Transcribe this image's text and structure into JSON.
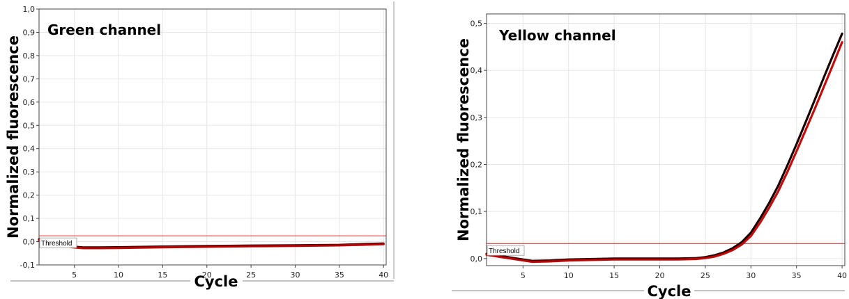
{
  "chart_data": [
    {
      "type": "line",
      "title": "Green channel",
      "xlabel": "Cycle",
      "ylabel": "Normalized fluorescence",
      "xlim": [
        1,
        40.3
      ],
      "ylim": [
        -0.1,
        1.0
      ],
      "x_ticks": [
        5,
        10,
        15,
        20,
        25,
        30,
        35,
        40
      ],
      "y_ticks": [
        "1,0",
        "0,9",
        "0,8",
        "0,7",
        "0,6",
        "0,5",
        "0,4",
        "0,3",
        "0,2",
        "0,1",
        "0,0",
        "-0,1"
      ],
      "y_tick_values": [
        1.0,
        0.9,
        0.8,
        0.7,
        0.6,
        0.5,
        0.4,
        0.3,
        0.2,
        0.1,
        0.0,
        -0.1
      ],
      "grid": true,
      "threshold": {
        "label": "Threshold",
        "value": 0.025
      },
      "colors": {
        "threshold": "#e03030",
        "series_dark": "#1a0000",
        "series_red": "#c00000"
      },
      "series": [
        {
          "color": "#1a0000",
          "x": [
            1,
            3,
            5,
            6,
            8,
            10,
            15,
            20,
            25,
            30,
            35,
            38,
            40
          ],
          "y": [
            0.01,
            -0.012,
            -0.022,
            -0.025,
            -0.025,
            -0.024,
            -0.021,
            -0.019,
            -0.017,
            -0.016,
            -0.014,
            -0.01,
            -0.008
          ]
        },
        {
          "color": "#c00000",
          "x": [
            1,
            3,
            5,
            6,
            8,
            10,
            15,
            20,
            25,
            30,
            35,
            38,
            40
          ],
          "y": [
            0.006,
            -0.015,
            -0.025,
            -0.028,
            -0.028,
            -0.027,
            -0.024,
            -0.022,
            -0.02,
            -0.018,
            -0.016,
            -0.013,
            -0.011
          ]
        }
      ]
    },
    {
      "type": "line",
      "title": "Yellow channel",
      "xlabel": "Cycle",
      "ylabel": "Normalized fluorescence",
      "xlim": [
        1,
        40.3
      ],
      "ylim": [
        -0.015,
        0.52
      ],
      "x_ticks": [
        5,
        10,
        15,
        20,
        25,
        30,
        35,
        40
      ],
      "y_ticks": [
        "0,5",
        "0,4",
        "0,3",
        "0,2",
        "0,1",
        "0,0"
      ],
      "y_tick_values": [
        0.5,
        0.4,
        0.3,
        0.2,
        0.1,
        0.0
      ],
      "grid": true,
      "threshold": {
        "label": "Threshold",
        "value": 0.032
      },
      "colors": {
        "threshold": "#c02020",
        "series_dark": "#1a0000",
        "series_red": "#c00000"
      },
      "series": [
        {
          "color": "#1a0000",
          "x": [
            1,
            3,
            5,
            6,
            8,
            10,
            15,
            20,
            22,
            24,
            25,
            26,
            27,
            28,
            29,
            30,
            31,
            32,
            33,
            34,
            35,
            36,
            37,
            38,
            39,
            40
          ],
          "y": [
            0.01,
            0.004,
            -0.002,
            -0.005,
            -0.004,
            -0.002,
            0.0,
            0.0,
            0.0,
            0.001,
            0.003,
            0.007,
            0.013,
            0.022,
            0.035,
            0.055,
            0.085,
            0.118,
            0.155,
            0.198,
            0.243,
            0.29,
            0.337,
            0.385,
            0.432,
            0.478
          ]
        },
        {
          "color": "#c00000",
          "x": [
            1,
            3,
            5,
            6,
            8,
            10,
            15,
            20,
            22,
            24,
            25,
            26,
            27,
            28,
            29,
            30,
            31,
            32,
            33,
            34,
            35,
            36,
            37,
            38,
            39,
            40
          ],
          "y": [
            0.008,
            0.002,
            -0.004,
            -0.007,
            -0.006,
            -0.004,
            -0.002,
            -0.002,
            -0.002,
            -0.001,
            0.001,
            0.004,
            0.01,
            0.018,
            0.03,
            0.048,
            0.076,
            0.108,
            0.143,
            0.184,
            0.228,
            0.273,
            0.318,
            0.365,
            0.412,
            0.46
          ]
        }
      ]
    }
  ]
}
